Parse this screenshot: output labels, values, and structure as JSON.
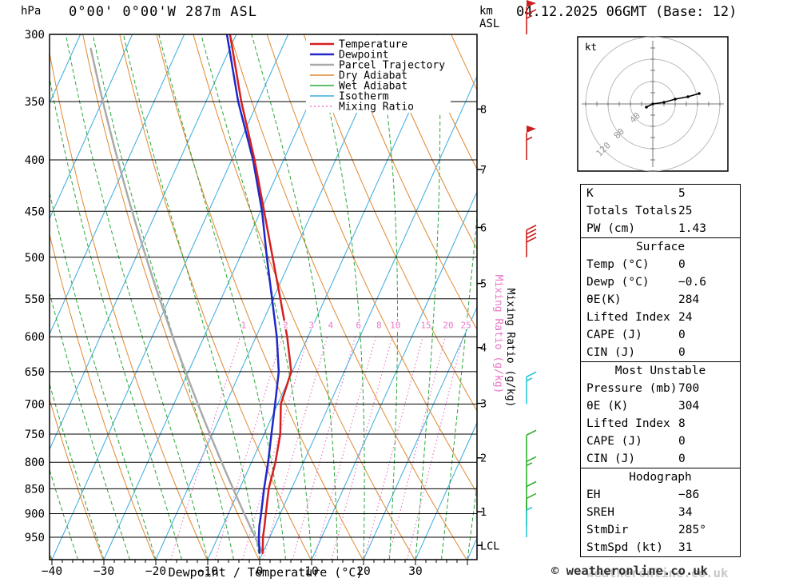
{
  "header": {
    "station": "0°00' 0°00'W 287m ASL",
    "datetime": "04.12.2025 06GMT (Base: 12)",
    "pressure_unit": "hPa",
    "km_line1": "km",
    "km_line2": "ASL"
  },
  "watermark": {
    "copyright": "© weatheronline.co.uk",
    "shadow": "weatheronline.co.uk"
  },
  "axes": {
    "xlabel": "Dewpoint / Temperature (°C)",
    "pressure_ticks": [
      300,
      350,
      400,
      450,
      500,
      550,
      600,
      650,
      700,
      750,
      800,
      850,
      900,
      950
    ],
    "temp_ticks": [
      -40,
      -30,
      -20,
      -10,
      0,
      10,
      20,
      30
    ],
    "km_ticks": [
      {
        "label": "8",
        "p": 356
      },
      {
        "label": "7",
        "p": 409
      },
      {
        "label": "6",
        "p": 467
      },
      {
        "label": "5",
        "p": 531
      },
      {
        "label": "4",
        "p": 615
      },
      {
        "label": "3",
        "p": 699
      },
      {
        "label": "2",
        "p": 792
      },
      {
        "label": "1",
        "p": 896
      },
      {
        "label": "LCL",
        "p": 968
      }
    ],
    "mixing_ratio_axis_label": "Mixing Ratio (g/kg)"
  },
  "legend": [
    {
      "label": "Temperature",
      "color": "#d42020",
      "width": 2.5,
      "dash": ""
    },
    {
      "label": "Dewpoint",
      "color": "#2028c8",
      "width": 2.5,
      "dash": ""
    },
    {
      "label": "Parcel Trajectory",
      "color": "#aaaaaa",
      "width": 2.5,
      "dash": ""
    },
    {
      "label": "Dry Adiabat",
      "color": "#e08830",
      "width": 1.4,
      "dash": ""
    },
    {
      "label": "Wet Adiabat",
      "color": "#28a838",
      "width": 1.4,
      "dash": ""
    },
    {
      "label": "Isotherm",
      "color": "#38aade",
      "width": 1.4,
      "dash": ""
    },
    {
      "label": "Mixing Ratio",
      "color": "#e878c8",
      "width": 1.6,
      "dash": "2,3"
    }
  ],
  "chart_data": {
    "type": "line",
    "subtype": "skew-t-log-p-sounding",
    "title": "0°00' 0°00'W 287m ASL  04.12.2025 06GMT (Base: 12)",
    "xlabel": "Dewpoint / Temperature (°C)",
    "ylabel": "hPa",
    "x_range_c": [
      -40,
      40
    ],
    "pressure_range_hpa": [
      300,
      1000
    ],
    "grid": {
      "isotherm_step_c": 10,
      "dry_adiabat_step_k": 10,
      "wet_adiabat_step_c": 5
    },
    "mixing_ratio_lines": [
      1,
      2,
      3,
      4,
      6,
      8,
      10,
      15,
      20,
      25
    ],
    "series": [
      {
        "name": "Temperature",
        "color": "#d42020",
        "points": [
          [
            985,
            0.0
          ],
          [
            950,
            -1.3
          ],
          [
            925,
            -2.0
          ],
          [
            900,
            -2.8
          ],
          [
            850,
            -4.4
          ],
          [
            800,
            -5.4
          ],
          [
            750,
            -6.9
          ],
          [
            700,
            -9.4
          ],
          [
            650,
            -10.2
          ],
          [
            600,
            -14.0
          ],
          [
            550,
            -18.6
          ],
          [
            500,
            -23.7
          ],
          [
            450,
            -29.3
          ],
          [
            400,
            -35.6
          ],
          [
            350,
            -43.2
          ],
          [
            300,
            -51.2
          ]
        ]
      },
      {
        "name": "Dewpoint",
        "color": "#2028c8",
        "points": [
          [
            985,
            -0.6
          ],
          [
            950,
            -2.1
          ],
          [
            925,
            -3.0
          ],
          [
            900,
            -3.7
          ],
          [
            850,
            -5.3
          ],
          [
            800,
            -6.8
          ],
          [
            750,
            -8.6
          ],
          [
            700,
            -10.5
          ],
          [
            650,
            -12.6
          ],
          [
            600,
            -16.0
          ],
          [
            550,
            -20.2
          ],
          [
            500,
            -24.8
          ],
          [
            450,
            -29.7
          ],
          [
            400,
            -35.9
          ],
          [
            350,
            -43.8
          ],
          [
            300,
            -51.8
          ]
        ]
      }
    ],
    "parcel": {
      "name": "Parcel Trajectory",
      "color": "#aaaaaa",
      "start_pressure_hpa": 985,
      "start_temp_c": 0
    },
    "winds": [
      {
        "p": 300,
        "speed_kt": 65,
        "color": "#cc2020"
      },
      {
        "p": 400,
        "speed_kt": 55,
        "color": "#cc2020"
      },
      {
        "p": 500,
        "speed_kt": 40,
        "color": "#cc2020"
      },
      {
        "p": 700,
        "speed_kt": 15,
        "color": "#28c8d8"
      },
      {
        "p": 800,
        "speed_kt": 10,
        "color": "#30b030"
      },
      {
        "p": 850,
        "speed_kt": 15,
        "color": "#30b030"
      },
      {
        "p": 900,
        "speed_kt": 10,
        "color": "#30b030"
      },
      {
        "p": 925,
        "speed_kt": 10,
        "color": "#30b030"
      },
      {
        "p": 950,
        "speed_kt": 5,
        "color": "#28c8d8"
      }
    ],
    "colors": {
      "temperature": "#d42020",
      "dewpoint": "#2028c8",
      "parcel": "#aaaaaa",
      "dry_adiabat": "#e08830",
      "wet_adiabat": "#28a838",
      "isotherm": "#38aade",
      "mixing_ratio": "#e878c8",
      "isobar": "#000000"
    }
  },
  "hodograph": {
    "unit": "kt",
    "rings": [
      {
        "label": "40",
        "r": 28
      },
      {
        "label": "80",
        "r": 56
      },
      {
        "label": "120",
        "r": 84
      }
    ],
    "trace": [
      [
        -8,
        4
      ],
      [
        0,
        0
      ],
      [
        14,
        -2
      ],
      [
        28,
        -6
      ],
      [
        44,
        -9
      ],
      [
        58,
        -13
      ]
    ]
  },
  "table": {
    "sections": [
      {
        "title": null,
        "rows": [
          [
            "K",
            "5"
          ],
          [
            "Totals Totals",
            "25"
          ],
          [
            "PW (cm)",
            "1.43"
          ]
        ]
      },
      {
        "title": "Surface",
        "rows": [
          [
            "Temp (°C)",
            "0"
          ],
          [
            "Dewp (°C)",
            "−0.6"
          ],
          [
            "θE(K)",
            "284"
          ],
          [
            "Lifted Index",
            "24"
          ],
          [
            "CAPE (J)",
            "0"
          ],
          [
            "CIN (J)",
            "0"
          ]
        ]
      },
      {
        "title": "Most Unstable",
        "rows": [
          [
            "Pressure (mb)",
            "700"
          ],
          [
            "θE (K)",
            "304"
          ],
          [
            "Lifted Index",
            "8"
          ],
          [
            "CAPE (J)",
            "0"
          ],
          [
            "CIN (J)",
            "0"
          ]
        ]
      },
      {
        "title": "Hodograph",
        "rows": [
          [
            "EH",
            "−86"
          ],
          [
            "SREH",
            "34"
          ],
          [
            "StmDir",
            "285°"
          ],
          [
            "StmSpd (kt)",
            "31"
          ]
        ]
      }
    ]
  }
}
